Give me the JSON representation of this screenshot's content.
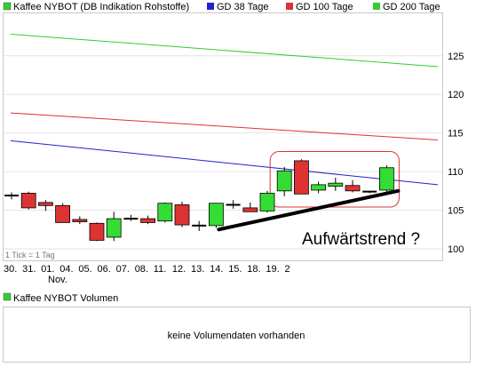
{
  "chart_data": [
    {
      "type": "candlestick",
      "title": "Kaffee NYBOT (DB Indikation Rohstoffe)",
      "legend": [
        {
          "name": "GD 38 Tage",
          "color": "#2222cc"
        },
        {
          "name": "GD 100 Tage",
          "color": "#dd3333"
        },
        {
          "name": "GD 200 Tage",
          "color": "#33cc33"
        }
      ],
      "y_ticks": [
        100,
        105,
        110,
        115,
        120,
        125
      ],
      "ylim": [
        98.5,
        130.5
      ],
      "x_labels": [
        "30.",
        "31.",
        "01.",
        "04.",
        "05.",
        "06.",
        "07.",
        "08.",
        "11.",
        "12.",
        "13.",
        "14.",
        "15.",
        "18.",
        "19.",
        "2"
      ],
      "x_sublabel": "Nov.",
      "tick_note": "1 Tick = 1 Tag",
      "annotation": "Aufwärtstrend ?",
      "colors": {
        "up": "#33dd33",
        "down": "#dd3333",
        "box": "#dd3333",
        "trend": "#000000"
      },
      "candles": [
        {
          "o": 106.9,
          "h": 107.3,
          "l": 106.4,
          "c": 106.9
        },
        {
          "o": 107.2,
          "h": 107.4,
          "l": 105.1,
          "c": 105.3
        },
        {
          "o": 106.0,
          "h": 106.3,
          "l": 104.9,
          "c": 105.6
        },
        {
          "o": 105.6,
          "h": 105.9,
          "l": 103.4,
          "c": 103.4
        },
        {
          "o": 103.8,
          "h": 104.2,
          "l": 103.2,
          "c": 103.5
        },
        {
          "o": 103.3,
          "h": 103.4,
          "l": 101.0,
          "c": 101.1
        },
        {
          "o": 101.5,
          "h": 104.8,
          "l": 101.0,
          "c": 103.9
        },
        {
          "o": 103.7,
          "h": 104.4,
          "l": 103.6,
          "c": 103.9
        },
        {
          "o": 103.9,
          "h": 104.3,
          "l": 103.2,
          "c": 103.4
        },
        {
          "o": 103.6,
          "h": 106.0,
          "l": 103.4,
          "c": 105.9
        },
        {
          "o": 105.7,
          "h": 106.1,
          "l": 102.8,
          "c": 103.1
        },
        {
          "o": 103.0,
          "h": 103.6,
          "l": 102.3,
          "c": 103.0
        },
        {
          "o": 103.0,
          "h": 105.9,
          "l": 102.7,
          "c": 105.9
        },
        {
          "o": 105.7,
          "h": 106.3,
          "l": 105.2,
          "c": 105.7
        },
        {
          "o": 105.3,
          "h": 106.0,
          "l": 104.8,
          "c": 104.8
        },
        {
          "o": 104.9,
          "h": 107.5,
          "l": 104.7,
          "c": 107.2
        },
        {
          "o": 107.5,
          "h": 110.6,
          "l": 106.8,
          "c": 110.1
        },
        {
          "o": 111.4,
          "h": 111.6,
          "l": 107.1,
          "c": 107.1
        },
        {
          "o": 107.6,
          "h": 108.7,
          "l": 107.2,
          "c": 108.3
        },
        {
          "o": 108.1,
          "h": 109.2,
          "l": 107.5,
          "c": 108.5
        },
        {
          "o": 108.2,
          "h": 108.9,
          "l": 107.3,
          "c": 107.5
        },
        {
          "o": 107.4,
          "h": 107.5,
          "l": 107.2,
          "c": 107.4
        },
        {
          "o": 107.6,
          "h": 110.8,
          "l": 107.4,
          "c": 110.5
        }
      ],
      "ma_lines": [
        {
          "name": "GD 38 Tage",
          "start": 114.0,
          "end": 108.3
        },
        {
          "name": "GD 100 Tage",
          "start": 117.6,
          "end": 114.1
        },
        {
          "name": "GD 200 Tage",
          "start": 127.8,
          "end": 123.6
        }
      ],
      "trendline": {
        "from_index": 12,
        "from_value": 102.5,
        "to_value": 107.5
      }
    },
    {
      "type": "bar",
      "title": "Kaffee NYBOT Volumen",
      "legend_color": "#33cc33",
      "message": "keine Volumendaten vorhanden"
    }
  ]
}
